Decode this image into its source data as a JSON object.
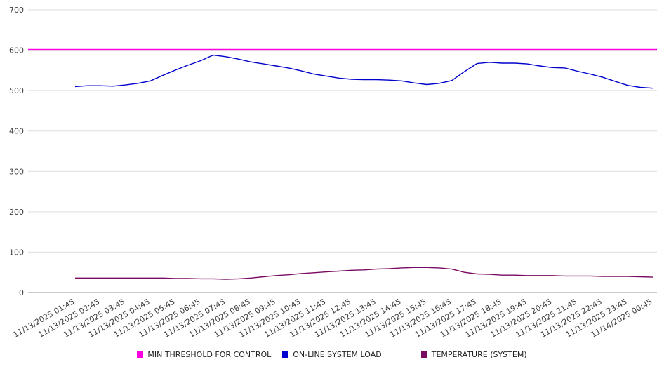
{
  "chart_data": {
    "type": "line",
    "title": "",
    "xlabel": "",
    "ylabel": "",
    "ylim": [
      0,
      700
    ],
    "yticks": [
      0,
      100,
      200,
      300,
      400,
      500,
      600,
      700
    ],
    "grid": true,
    "legend_position": "bottom",
    "x_labels": [
      "11/13/2025 01:45",
      "11/13/2025 02:45",
      "11/13/2025 03:45",
      "11/13/2025 04:45",
      "11/13/2025 05:45",
      "11/13/2025 06:45",
      "11/13/2025 07:45",
      "11/13/2025 08:45",
      "11/13/2025 09:45",
      "11/13/2025 10:45",
      "11/13/2025 11:45",
      "11/13/2025 12:45",
      "11/13/2025 13:45",
      "11/13/2025 14:45",
      "11/13/2025 15:45",
      "11/13/2025 16:45",
      "11/13/2025 17:45",
      "11/13/2025 18:45",
      "11/13/2025 19:45",
      "11/13/2025 20:45",
      "11/13/2025 21:45",
      "11/13/2025 22:45",
      "11/13/2025 23:45",
      "11/14/2025 00:45"
    ],
    "series": [
      {
        "name": "MIN THRESHOLD FOR CONTROL",
        "color": "#ff00e1",
        "constant": 602
      },
      {
        "name": "ON-LINE SYSTEM LOAD",
        "color": "#0000cc",
        "values": [
          510,
          512,
          512,
          511,
          514,
          518,
          524,
          538,
          551,
          563,
          574,
          588,
          584,
          578,
          571,
          566,
          561,
          556,
          549,
          541,
          536,
          531,
          528,
          527,
          527,
          526,
          524,
          519,
          515,
          518,
          525,
          547,
          567,
          570,
          568,
          568,
          566,
          561,
          557,
          556,
          548,
          541,
          533,
          523,
          513,
          508,
          506
        ]
      },
      {
        "name": "TEMPERATURE (SYSTEM)",
        "color": "#7a0b63",
        "values": [
          36,
          36,
          36,
          36,
          36,
          36,
          36,
          36,
          35,
          35,
          34,
          34,
          33,
          34,
          36,
          39,
          42,
          44,
          47,
          49,
          51,
          53,
          55,
          56,
          58,
          59,
          61,
          62,
          62,
          61,
          58,
          50,
          46,
          45,
          43,
          43,
          42,
          42,
          42,
          41,
          41,
          41,
          40,
          40,
          40,
          39,
          38
        ]
      }
    ]
  }
}
